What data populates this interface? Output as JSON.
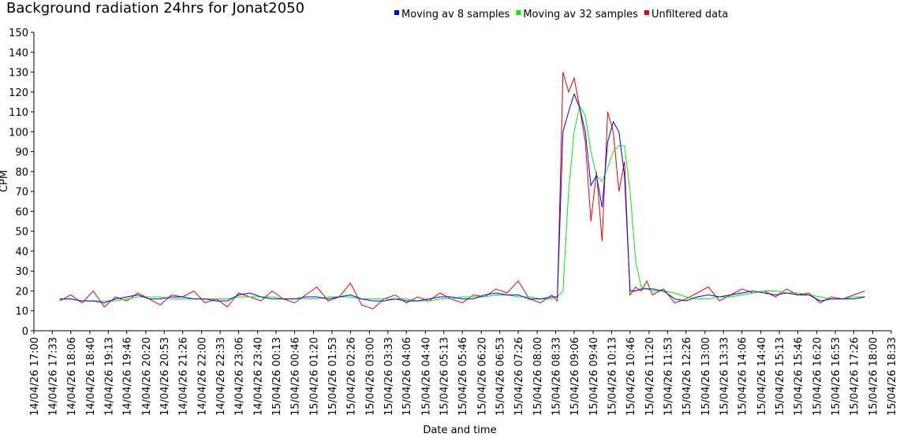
{
  "chart_data": {
    "type": "line",
    "title": "Background radiation 24hrs for Jonat2050",
    "xlabel": "Date and time",
    "ylabel": "CPM",
    "x": [
      "14/04/26 17:46",
      "14/04/26 18:06",
      "14/04/26 18:26",
      "14/04/26 18:46",
      "14/04/26 19:06",
      "14/04/26 19:26",
      "14/04/26 19:46",
      "14/04/26 20:06",
      "14/04/26 20:26",
      "14/04/26 20:46",
      "14/04/26 21:06",
      "14/04/26 21:26",
      "14/04/26 21:46",
      "14/04/26 22:06",
      "14/04/26 22:26",
      "14/04/26 22:46",
      "14/04/26 23:06",
      "14/04/26 23:26",
      "14/04/26 23:46",
      "15/04/26 00:06",
      "15/04/26 00:26",
      "15/04/26 00:46",
      "15/04/26 01:06",
      "15/04/26 01:26",
      "15/04/26 01:46",
      "15/04/26 02:06",
      "15/04/26 02:26",
      "15/04/26 02:46",
      "15/04/26 03:06",
      "15/04/26 03:26",
      "15/04/26 03:46",
      "15/04/26 04:06",
      "15/04/26 04:26",
      "15/04/26 04:46",
      "15/04/26 05:06",
      "15/04/26 05:26",
      "15/04/26 05:46",
      "15/04/26 06:06",
      "15/04/26 06:26",
      "15/04/26 06:46",
      "15/04/26 07:06",
      "15/04/26 07:26",
      "15/04/26 07:46",
      "15/04/26 08:06",
      "15/04/26 08:26",
      "15/04/26 08:36",
      "15/04/26 08:46",
      "15/04/26 08:56",
      "15/04/26 09:06",
      "15/04/26 09:16",
      "15/04/26 09:26",
      "15/04/26 09:36",
      "15/04/26 09:46",
      "15/04/26 09:56",
      "15/04/26 10:06",
      "15/04/26 10:16",
      "15/04/26 10:26",
      "15/04/26 10:36",
      "15/04/26 10:46",
      "15/04/26 10:56",
      "15/04/26 11:06",
      "15/04/26 11:16",
      "15/04/26 11:26",
      "15/04/26 11:46",
      "15/04/26 12:06",
      "15/04/26 12:26",
      "15/04/26 12:46",
      "15/04/26 13:06",
      "15/04/26 13:26",
      "15/04/26 13:46",
      "15/04/26 14:06",
      "15/04/26 14:26",
      "15/04/26 14:46",
      "15/04/26 15:06",
      "15/04/26 15:26",
      "15/04/26 15:46",
      "15/04/26 16:06",
      "15/04/26 16:26",
      "15/04/26 16:46",
      "15/04/26 17:06",
      "15/04/26 17:26",
      "15/04/26 17:46"
    ],
    "series": [
      {
        "name": "Moving av 8 samples",
        "color": "#0000ff",
        "values": [
          16,
          16,
          15,
          15,
          14,
          16,
          17,
          18,
          16,
          16,
          17,
          17,
          16,
          16,
          15,
          15,
          18,
          19,
          17,
          16,
          16,
          16,
          17,
          17,
          16,
          17,
          18,
          16,
          15,
          15,
          16,
          15,
          15,
          16,
          17,
          17,
          16,
          16,
          18,
          19,
          18,
          18,
          16,
          16,
          17,
          17,
          100,
          110,
          119,
          112,
          100,
          73,
          78,
          62,
          95,
          105,
          100,
          78,
          20,
          20,
          21,
          21,
          21,
          20,
          16,
          15,
          17,
          18,
          17,
          18,
          19,
          20,
          19,
          18,
          19,
          18,
          18,
          15,
          16,
          16,
          16,
          17
        ]
      },
      {
        "name": "Moving av 32 samples",
        "color": "#00ee00",
        "values": [
          16,
          16,
          15,
          15,
          15,
          15,
          16,
          17,
          17,
          17,
          16,
          16,
          16,
          16,
          16,
          16,
          17,
          17,
          17,
          17,
          16,
          16,
          16,
          16,
          17,
          17,
          17,
          16,
          16,
          16,
          16,
          16,
          15,
          15,
          16,
          16,
          17,
          17,
          17,
          18,
          18,
          17,
          17,
          16,
          16,
          17,
          20,
          70,
          100,
          113,
          108,
          90,
          78,
          75,
          82,
          90,
          93,
          93,
          70,
          35,
          22,
          21,
          20,
          20,
          19,
          17,
          16,
          16,
          17,
          17,
          18,
          19,
          20,
          20,
          19,
          19,
          18,
          17,
          16,
          16,
          17,
          17
        ]
      },
      {
        "name": "Unfiltered data",
        "color": "#ee0000",
        "values": [
          15,
          18,
          14,
          20,
          12,
          17,
          15,
          19,
          16,
          13,
          18,
          17,
          20,
          14,
          16,
          12,
          19,
          17,
          15,
          20,
          16,
          14,
          18,
          22,
          15,
          17,
          24,
          13,
          11,
          16,
          18,
          14,
          17,
          15,
          19,
          16,
          14,
          18,
          17,
          21,
          19,
          25,
          16,
          14,
          18,
          15,
          130,
          120,
          127,
          112,
          95,
          55,
          80,
          45,
          110,
          100,
          70,
          85,
          18,
          22,
          20,
          25,
          18,
          21,
          14,
          16,
          19,
          22,
          15,
          18,
          21,
          19,
          20,
          17,
          21,
          18,
          19,
          14,
          17,
          16,
          18,
          20
        ]
      }
    ],
    "draw_order": [
      2,
      1,
      0
    ],
    "xlim": [
      "14/04/26 17:00",
      "15/04/26 18:33"
    ],
    "xticks": [
      "14/04/26 17:00",
      "14/04/26 17:33",
      "14/04/26 18:06",
      "14/04/26 18:40",
      "14/04/26 19:13",
      "14/04/26 19:46",
      "14/04/26 20:20",
      "14/04/26 20:53",
      "14/04/26 21:26",
      "14/04/26 22:00",
      "14/04/26 22:33",
      "14/04/26 23:06",
      "14/04/26 23:40",
      "15/04/26 00:13",
      "15/04/26 00:46",
      "15/04/26 01:20",
      "15/04/26 01:53",
      "15/04/26 02:26",
      "15/04/26 03:00",
      "15/04/26 03:33",
      "15/04/26 04:06",
      "15/04/26 04:40",
      "15/04/26 05:13",
      "15/04/26 05:46",
      "15/04/26 06:20",
      "15/04/26 06:53",
      "15/04/26 07:26",
      "15/04/26 08:00",
      "15/04/26 08:33",
      "15/04/26 09:06",
      "15/04/26 09:40",
      "15/04/26 10:13",
      "15/04/26 10:46",
      "15/04/26 11:20",
      "15/04/26 11:53",
      "15/04/26 12:26",
      "15/04/26 13:00",
      "15/04/26 13:33",
      "15/04/26 14:06",
      "15/04/26 14:40",
      "15/04/26 15:13",
      "15/04/26 15:46",
      "15/04/26 16:20",
      "15/04/26 16:53",
      "15/04/26 17:26",
      "15/04/26 18:00",
      "15/04/26 18:33"
    ],
    "ylim": [
      0,
      150
    ],
    "yticks": [
      0,
      10,
      20,
      30,
      40,
      50,
      60,
      70,
      80,
      90,
      100,
      110,
      120,
      130,
      140,
      150
    ],
    "grid": false
  }
}
